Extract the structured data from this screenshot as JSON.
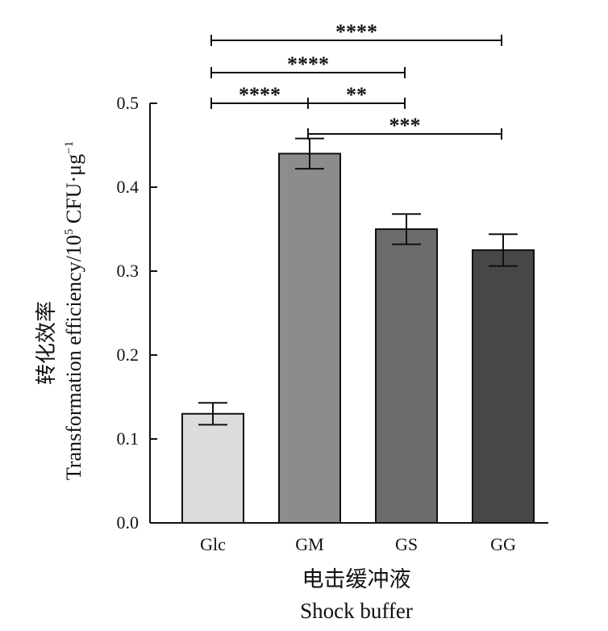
{
  "chart_data": {
    "type": "bar",
    "categories": [
      "Glc",
      "GM",
      "GS",
      "GG"
    ],
    "values": [
      0.13,
      0.44,
      0.35,
      0.325
    ],
    "errors": [
      0.013,
      0.018,
      0.018,
      0.019
    ],
    "colors": [
      "#dcdcdc",
      "#8c8c8c",
      "#6c6c6c",
      "#474747"
    ],
    "ylim": [
      0,
      0.5
    ],
    "yticks": [
      "0.0",
      "0.1",
      "0.2",
      "0.3",
      "0.4",
      "0.5"
    ],
    "xlabel_cn": "电击缓冲液",
    "xlabel_en": "Shock buffer",
    "ylabel_cn": "转化效率",
    "ylabel_en": "Transformation efficiency/10",
    "ylabel_exp": "5",
    "ylabel_unit": " CFU·μg",
    "ylabel_unit_exp": "−1",
    "significance": [
      {
        "from": 0,
        "to": 3,
        "label": "****"
      },
      {
        "from": 0,
        "to": 2,
        "label": "****"
      },
      {
        "from": 0,
        "to": 1,
        "label": "****"
      },
      {
        "from": 1,
        "to": 2,
        "label": "**"
      },
      {
        "from": 1,
        "to": 3,
        "label": "***"
      }
    ]
  }
}
